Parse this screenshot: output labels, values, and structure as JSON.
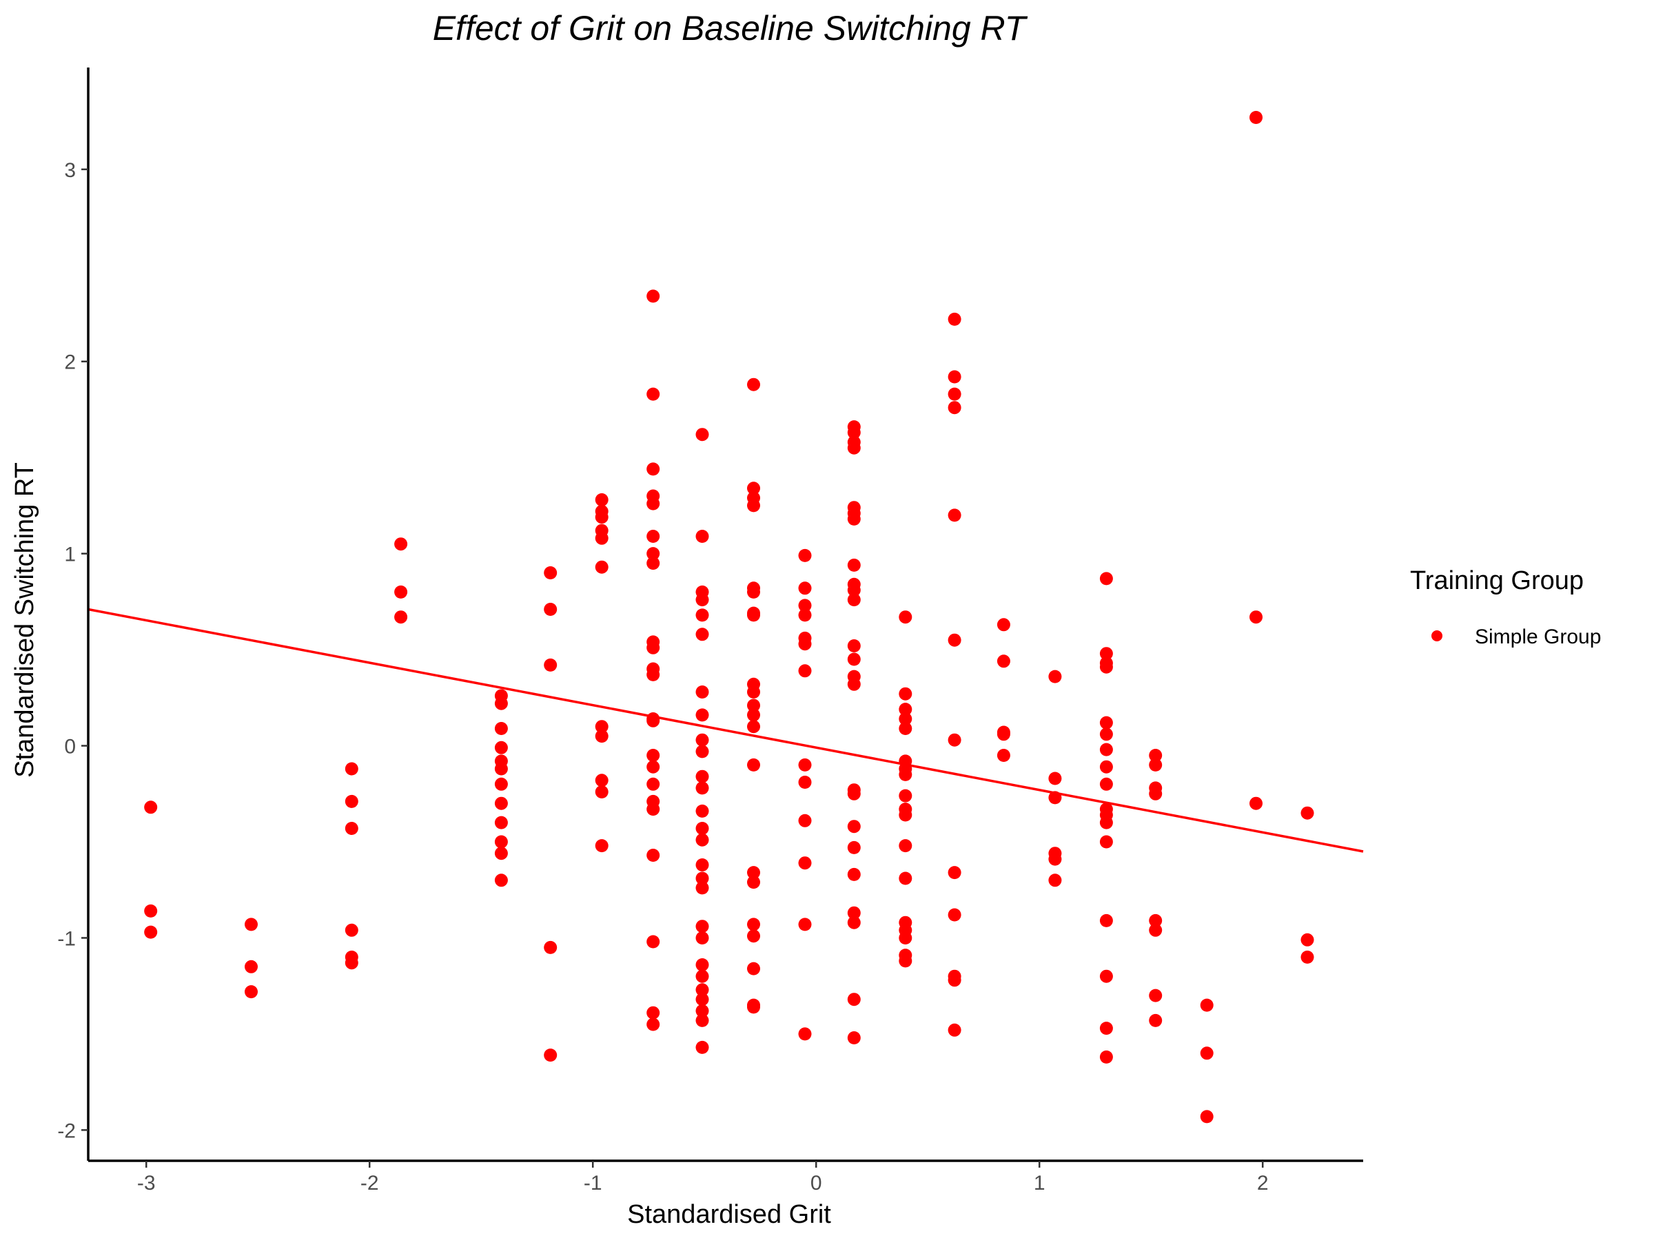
{
  "chart_data": {
    "type": "scatter",
    "title": "Effect of Grit on Baseline Switching RT",
    "xlabel": "Standardised Grit",
    "ylabel": "Standardised Switching RT",
    "xlim": [
      -3.26,
      2.45
    ],
    "ylim": [
      -2.16,
      3.53
    ],
    "x_ticks": [
      -3,
      -2,
      -1,
      0,
      1,
      2
    ],
    "y_ticks": [
      -2,
      -1,
      0,
      1,
      2,
      3
    ],
    "x_tick_labels": [
      "-3",
      "-2",
      "-1",
      "0",
      "1",
      "2"
    ],
    "y_tick_labels": [
      "-2",
      "-1",
      "0",
      "1",
      "2",
      "3"
    ],
    "grid": false,
    "legend": {
      "title": "Training Group",
      "position": "right",
      "entries": [
        {
          "label": "Simple Group",
          "color": "#ff0000"
        }
      ]
    },
    "series": [
      {
        "name": "Simple Group",
        "color": "#ff0000",
        "points": [
          [
            -2.98,
            -0.32
          ],
          [
            -2.98,
            -0.86
          ],
          [
            -2.98,
            -0.97
          ],
          [
            -2.53,
            -0.93
          ],
          [
            -2.53,
            -1.15
          ],
          [
            -2.53,
            -1.28
          ],
          [
            -2.08,
            -0.12
          ],
          [
            -2.08,
            -0.29
          ],
          [
            -2.08,
            -0.43
          ],
          [
            -2.08,
            -0.96
          ],
          [
            -2.08,
            -1.1
          ],
          [
            -2.08,
            -1.13
          ],
          [
            -1.86,
            1.05
          ],
          [
            -1.86,
            0.8
          ],
          [
            -1.86,
            0.67
          ],
          [
            -1.41,
            0.26
          ],
          [
            -1.41,
            0.22
          ],
          [
            -1.41,
            0.09
          ],
          [
            -1.41,
            -0.01
          ],
          [
            -1.41,
            -0.08
          ],
          [
            -1.41,
            -0.12
          ],
          [
            -1.41,
            -0.2
          ],
          [
            -1.41,
            -0.3
          ],
          [
            -1.41,
            -0.4
          ],
          [
            -1.41,
            -0.5
          ],
          [
            -1.41,
            -0.56
          ],
          [
            -1.41,
            -0.7
          ],
          [
            -1.19,
            0.9
          ],
          [
            -1.19,
            0.71
          ],
          [
            -1.19,
            0.42
          ],
          [
            -1.19,
            -1.05
          ],
          [
            -1.19,
            -1.61
          ],
          [
            -0.96,
            1.28
          ],
          [
            -0.96,
            1.22
          ],
          [
            -0.96,
            1.19
          ],
          [
            -0.96,
            1.12
          ],
          [
            -0.96,
            1.08
          ],
          [
            -0.96,
            0.93
          ],
          [
            -0.96,
            0.1
          ],
          [
            -0.96,
            0.05
          ],
          [
            -0.96,
            -0.18
          ],
          [
            -0.96,
            -0.24
          ],
          [
            -0.96,
            -0.52
          ],
          [
            -0.73,
            2.34
          ],
          [
            -0.73,
            1.83
          ],
          [
            -0.73,
            1.44
          ],
          [
            -0.73,
            1.3
          ],
          [
            -0.73,
            1.26
          ],
          [
            -0.73,
            1.09
          ],
          [
            -0.73,
            1.0
          ],
          [
            -0.73,
            0.95
          ],
          [
            -0.73,
            0.54
          ],
          [
            -0.73,
            0.51
          ],
          [
            -0.73,
            0.4
          ],
          [
            -0.73,
            0.37
          ],
          [
            -0.73,
            0.14
          ],
          [
            -0.73,
            0.13
          ],
          [
            -0.73,
            -0.05
          ],
          [
            -0.73,
            -0.11
          ],
          [
            -0.73,
            -0.2
          ],
          [
            -0.73,
            -0.29
          ],
          [
            -0.73,
            -0.33
          ],
          [
            -0.73,
            -0.57
          ],
          [
            -0.73,
            -1.02
          ],
          [
            -0.73,
            -1.39
          ],
          [
            -0.73,
            -1.45
          ],
          [
            -0.51,
            1.62
          ],
          [
            -0.51,
            1.09
          ],
          [
            -0.51,
            0.8
          ],
          [
            -0.51,
            0.76
          ],
          [
            -0.51,
            0.68
          ],
          [
            -0.51,
            0.58
          ],
          [
            -0.51,
            0.28
          ],
          [
            -0.51,
            0.16
          ],
          [
            -0.51,
            0.03
          ],
          [
            -0.51,
            -0.03
          ],
          [
            -0.51,
            -0.16
          ],
          [
            -0.51,
            -0.22
          ],
          [
            -0.51,
            -0.34
          ],
          [
            -0.51,
            -0.43
          ],
          [
            -0.51,
            -0.49
          ],
          [
            -0.51,
            -0.62
          ],
          [
            -0.51,
            -0.69
          ],
          [
            -0.51,
            -0.74
          ],
          [
            -0.51,
            -0.94
          ],
          [
            -0.51,
            -1.0
          ],
          [
            -0.51,
            -1.14
          ],
          [
            -0.51,
            -1.2
          ],
          [
            -0.51,
            -1.27
          ],
          [
            -0.51,
            -1.32
          ],
          [
            -0.51,
            -1.38
          ],
          [
            -0.51,
            -1.43
          ],
          [
            -0.51,
            -1.57
          ],
          [
            -0.28,
            1.88
          ],
          [
            -0.28,
            1.34
          ],
          [
            -0.28,
            1.29
          ],
          [
            -0.28,
            1.25
          ],
          [
            -0.28,
            0.82
          ],
          [
            -0.28,
            0.8
          ],
          [
            -0.28,
            0.69
          ],
          [
            -0.28,
            0.68
          ],
          [
            -0.28,
            0.32
          ],
          [
            -0.28,
            0.28
          ],
          [
            -0.28,
            0.21
          ],
          [
            -0.28,
            0.16
          ],
          [
            -0.28,
            0.1
          ],
          [
            -0.28,
            -0.1
          ],
          [
            -0.28,
            -0.66
          ],
          [
            -0.28,
            -0.71
          ],
          [
            -0.28,
            -0.93
          ],
          [
            -0.28,
            -0.99
          ],
          [
            -0.28,
            -1.16
          ],
          [
            -0.28,
            -1.35
          ],
          [
            -0.28,
            -1.36
          ],
          [
            -0.05,
            0.99
          ],
          [
            -0.05,
            0.82
          ],
          [
            -0.05,
            0.73
          ],
          [
            -0.05,
            0.68
          ],
          [
            -0.05,
            0.56
          ],
          [
            -0.05,
            0.53
          ],
          [
            -0.05,
            0.39
          ],
          [
            -0.05,
            -0.1
          ],
          [
            -0.05,
            -0.19
          ],
          [
            -0.05,
            -0.39
          ],
          [
            -0.05,
            -0.61
          ],
          [
            -0.05,
            -0.93
          ],
          [
            -0.05,
            -1.5
          ],
          [
            0.17,
            1.66
          ],
          [
            0.17,
            1.63
          ],
          [
            0.17,
            1.58
          ],
          [
            0.17,
            1.55
          ],
          [
            0.17,
            1.24
          ],
          [
            0.17,
            1.21
          ],
          [
            0.17,
            1.18
          ],
          [
            0.17,
            0.94
          ],
          [
            0.17,
            0.84
          ],
          [
            0.17,
            0.81
          ],
          [
            0.17,
            0.76
          ],
          [
            0.17,
            0.52
          ],
          [
            0.17,
            0.45
          ],
          [
            0.17,
            0.36
          ],
          [
            0.17,
            0.32
          ],
          [
            0.17,
            -0.23
          ],
          [
            0.17,
            -0.25
          ],
          [
            0.17,
            -0.42
          ],
          [
            0.17,
            -0.53
          ],
          [
            0.17,
            -0.67
          ],
          [
            0.17,
            -0.87
          ],
          [
            0.17,
            -0.92
          ],
          [
            0.17,
            -1.32
          ],
          [
            0.17,
            -1.52
          ],
          [
            0.4,
            0.67
          ],
          [
            0.4,
            0.27
          ],
          [
            0.4,
            0.19
          ],
          [
            0.4,
            0.14
          ],
          [
            0.4,
            0.09
          ],
          [
            0.4,
            -0.08
          ],
          [
            0.4,
            -0.12
          ],
          [
            0.4,
            -0.15
          ],
          [
            0.4,
            -0.26
          ],
          [
            0.4,
            -0.33
          ],
          [
            0.4,
            -0.36
          ],
          [
            0.4,
            -0.52
          ],
          [
            0.4,
            -0.69
          ],
          [
            0.4,
            -0.92
          ],
          [
            0.4,
            -0.96
          ],
          [
            0.4,
            -1.0
          ],
          [
            0.4,
            -1.09
          ],
          [
            0.4,
            -1.12
          ],
          [
            0.62,
            2.22
          ],
          [
            0.62,
            1.92
          ],
          [
            0.62,
            1.83
          ],
          [
            0.62,
            1.76
          ],
          [
            0.62,
            1.2
          ],
          [
            0.62,
            0.55
          ],
          [
            0.62,
            0.03
          ],
          [
            0.62,
            -0.66
          ],
          [
            0.62,
            -0.88
          ],
          [
            0.62,
            -1.2
          ],
          [
            0.62,
            -1.22
          ],
          [
            0.62,
            -1.48
          ],
          [
            0.84,
            0.63
          ],
          [
            0.84,
            0.44
          ],
          [
            0.84,
            0.07
          ],
          [
            0.84,
            0.06
          ],
          [
            0.84,
            -0.05
          ],
          [
            1.07,
            0.36
          ],
          [
            1.07,
            -0.17
          ],
          [
            1.07,
            -0.27
          ],
          [
            1.07,
            -0.56
          ],
          [
            1.07,
            -0.59
          ],
          [
            1.07,
            -0.7
          ],
          [
            1.3,
            0.87
          ],
          [
            1.3,
            0.48
          ],
          [
            1.3,
            0.43
          ],
          [
            1.3,
            0.41
          ],
          [
            1.3,
            0.12
          ],
          [
            1.3,
            0.06
          ],
          [
            1.3,
            -0.02
          ],
          [
            1.3,
            -0.11
          ],
          [
            1.3,
            -0.2
          ],
          [
            1.3,
            -0.33
          ],
          [
            1.3,
            -0.36
          ],
          [
            1.3,
            -0.4
          ],
          [
            1.3,
            -0.5
          ],
          [
            1.3,
            -0.91
          ],
          [
            1.3,
            -1.2
          ],
          [
            1.3,
            -1.47
          ],
          [
            1.3,
            -1.62
          ],
          [
            1.52,
            -0.05
          ],
          [
            1.52,
            -0.1
          ],
          [
            1.52,
            -0.22
          ],
          [
            1.52,
            -0.25
          ],
          [
            1.52,
            -0.91
          ],
          [
            1.52,
            -0.96
          ],
          [
            1.52,
            -1.3
          ],
          [
            1.52,
            -1.43
          ],
          [
            1.75,
            -1.35
          ],
          [
            1.75,
            -1.6
          ],
          [
            1.75,
            -1.93
          ],
          [
            1.97,
            3.27
          ],
          [
            1.97,
            0.67
          ],
          [
            1.97,
            -0.3
          ],
          [
            2.2,
            -0.35
          ],
          [
            2.2,
            -1.01
          ],
          [
            2.2,
            -1.1
          ]
        ]
      }
    ],
    "regression_line": {
      "x": [
        -3.26,
        2.45
      ],
      "y": [
        0.71,
        -0.55
      ],
      "color": "#ff0000"
    }
  }
}
